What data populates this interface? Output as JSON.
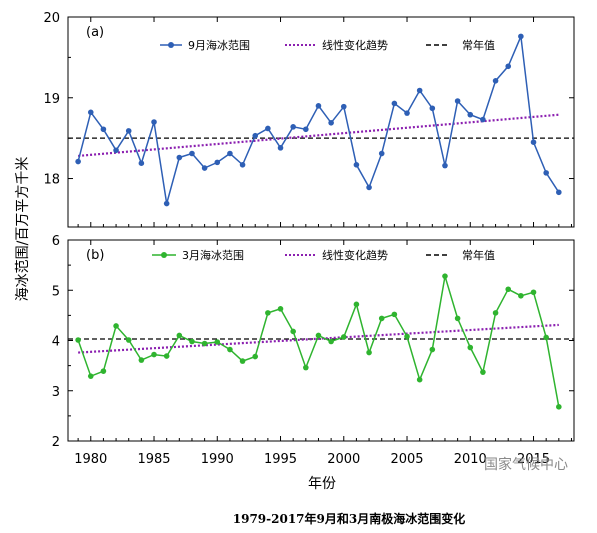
{
  "figure": {
    "caption": "1979-2017年9月和3月南极海冰范围变化",
    "ylabel": "海冰范围/百万平方千米",
    "xlabel": "年份",
    "watermark": "国家气候中心"
  },
  "colors": {
    "september": "#2e5fb5",
    "march": "#2fb42f",
    "trend": "#8b1fb0",
    "normal": "#000000"
  },
  "chart_data": [
    {
      "type": "line",
      "panel_tag": "(a)",
      "x": [
        1979,
        1980,
        1981,
        1982,
        1983,
        1984,
        1985,
        1986,
        1987,
        1988,
        1989,
        1990,
        1991,
        1992,
        1993,
        1994,
        1995,
        1996,
        1997,
        1998,
        1999,
        2000,
        2001,
        2002,
        2003,
        2004,
        2005,
        2006,
        2007,
        2008,
        2009,
        2010,
        2011,
        2012,
        2013,
        2014,
        2015,
        2016,
        2017
      ],
      "xlim": [
        1978.2,
        2018.2
      ],
      "xticks": [
        1980,
        1985,
        1990,
        1995,
        2000,
        2005,
        2010,
        2015
      ],
      "ylim": [
        17.4,
        20
      ],
      "yticks": [
        18,
        19,
        20
      ],
      "series": [
        {
          "name": "9月海冰范围",
          "style": "line-markers",
          "values": [
            18.21,
            18.82,
            18.61,
            18.35,
            18.59,
            18.19,
            18.7,
            17.69,
            18.26,
            18.31,
            18.13,
            18.2,
            18.31,
            18.17,
            18.53,
            18.62,
            18.38,
            18.64,
            18.61,
            18.9,
            18.69,
            18.89,
            18.17,
            17.89,
            18.31,
            18.93,
            18.81,
            19.09,
            18.87,
            18.16,
            18.96,
            18.79,
            18.73,
            19.21,
            19.39,
            19.76,
            18.45,
            18.07,
            17.83
          ]
        }
      ],
      "trend": {
        "name": "线性变化趋势",
        "start": 18.28,
        "end": 18.79
      },
      "normal": {
        "name": "常年值",
        "value": 18.5
      }
    },
    {
      "type": "line",
      "panel_tag": "(b)",
      "x": [
        1979,
        1980,
        1981,
        1982,
        1983,
        1984,
        1985,
        1986,
        1987,
        1988,
        1989,
        1990,
        1991,
        1992,
        1993,
        1994,
        1995,
        1996,
        1997,
        1998,
        1999,
        2000,
        2001,
        2002,
        2003,
        2004,
        2005,
        2006,
        2007,
        2008,
        2009,
        2010,
        2011,
        2012,
        2013,
        2014,
        2015,
        2016,
        2017
      ],
      "xlim": [
        1978.2,
        2018.2
      ],
      "xticks": [
        1980,
        1985,
        1990,
        1995,
        2000,
        2005,
        2010,
        2015
      ],
      "xtick_labels": [
        "1980",
        "1985",
        "1990",
        "1995",
        "2000",
        "2005",
        "2010",
        "2015"
      ],
      "ylim": [
        2,
        6
      ],
      "yticks": [
        2,
        3,
        4,
        5,
        6
      ],
      "series": [
        {
          "name": "3月海冰范围",
          "style": "line-markers",
          "values": [
            4.01,
            3.29,
            3.39,
            4.29,
            4.01,
            3.61,
            3.72,
            3.69,
            4.1,
            3.98,
            3.94,
            3.97,
            3.82,
            3.59,
            3.68,
            4.55,
            4.63,
            4.18,
            3.46,
            4.1,
            3.98,
            4.07,
            4.72,
            3.76,
            4.44,
            4.52,
            4.08,
            3.22,
            3.82,
            5.28,
            4.44,
            3.86,
            3.37,
            4.55,
            5.02,
            4.89,
            4.96,
            4.06,
            2.68
          ]
        }
      ],
      "trend": {
        "name": "线性变化趋势",
        "start": 3.76,
        "end": 4.31
      },
      "normal": {
        "name": "常年值",
        "value": 4.03
      }
    }
  ]
}
